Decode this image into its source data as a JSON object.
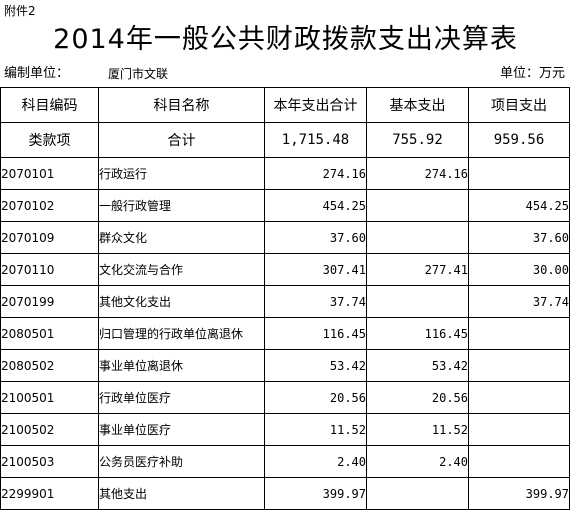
{
  "attachment": "附件2",
  "title": "2014年一般公共财政拨款支出决算表",
  "meta": {
    "org_label": "编制单位：",
    "org_value": "厦门市文联",
    "unit": "单位：万元"
  },
  "columns": [
    "科目编码",
    "科目名称",
    "本年支出合计",
    "基本支出",
    "项目支出"
  ],
  "summary": {
    "code": "类款项",
    "name": "合计",
    "total": "1,715.48",
    "basic": "755.92",
    "project": "959.56"
  },
  "rows": [
    {
      "code": "2070101",
      "name": "行政运行",
      "total": "274.16",
      "basic": "274.16",
      "project": ""
    },
    {
      "code": "2070102",
      "name": "一般行政管理",
      "total": "454.25",
      "basic": "",
      "project": "454.25"
    },
    {
      "code": "2070109",
      "name": "群众文化",
      "total": "37.60",
      "basic": "",
      "project": "37.60"
    },
    {
      "code": "2070110",
      "name": "文化交流与合作",
      "total": "307.41",
      "basic": "277.41",
      "project": "30.00"
    },
    {
      "code": "2070199",
      "name": "其他文化支出",
      "total": "37.74",
      "basic": "",
      "project": "37.74"
    },
    {
      "code": "2080501",
      "name": "归口管理的行政单位离退休",
      "total": "116.45",
      "basic": "116.45",
      "project": ""
    },
    {
      "code": "2080502",
      "name": "事业单位离退休",
      "total": "53.42",
      "basic": "53.42",
      "project": ""
    },
    {
      "code": "2100501",
      "name": "行政单位医疗",
      "total": "20.56",
      "basic": "20.56",
      "project": ""
    },
    {
      "code": "2100502",
      "name": "事业单位医疗",
      "total": "11.52",
      "basic": "11.52",
      "project": ""
    },
    {
      "code": "2100503",
      "name": "公务员医疗补助",
      "total": "2.40",
      "basic": "2.40",
      "project": ""
    },
    {
      "code": "2299901",
      "name": "其他支出",
      "total": "399.97",
      "basic": "",
      "project": "399.97"
    }
  ]
}
